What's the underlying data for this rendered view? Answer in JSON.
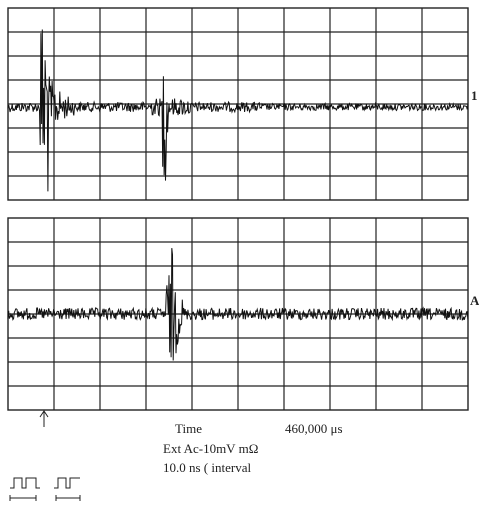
{
  "channels": {
    "top": "1",
    "bottom": "A"
  },
  "readout": {
    "time_label": "Time",
    "time_value": "460,000 μs",
    "trigger": "Ext Ac-10mV mΩ",
    "interval": "10.0 ns ( interval"
  }
}
